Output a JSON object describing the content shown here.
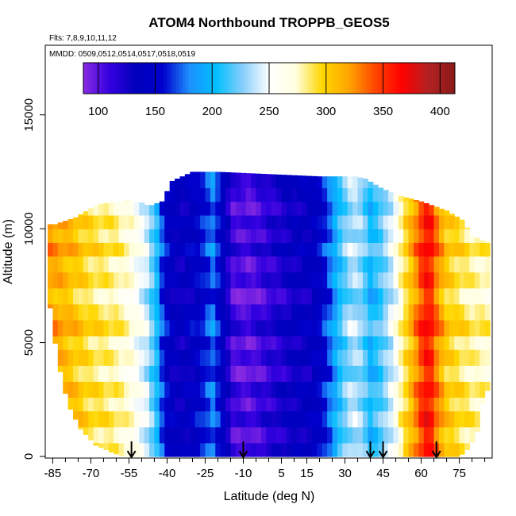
{
  "chart_data": {
    "type": "heatmap",
    "title": "ATOM4 Northbound TROPPB_GEOS5",
    "flights_note": "Flts: 7,8,9,10,11,12",
    "dates_note": "MMDD: 0509,0512,0514,0517,0518,0519",
    "xlabel": "Latitude (deg N)",
    "ylabel": "Altitude (m)",
    "xlim": [
      -87,
      87
    ],
    "ylim": [
      0,
      17500
    ],
    "x_ticks": [
      -85,
      -70,
      -55,
      -40,
      -25,
      -10,
      5,
      15,
      30,
      45,
      60,
      75
    ],
    "x_minor_ticks": [
      -80,
      -75,
      -65,
      -60,
      -50,
      -45,
      -35,
      -30,
      -20,
      -15,
      -5,
      0,
      10,
      20,
      25,
      35,
      40,
      50,
      55,
      65,
      70,
      80,
      85
    ],
    "y_ticks": [
      0,
      5000,
      10000,
      15000
    ],
    "colorbar": {
      "label_ticks": [
        100,
        150,
        200,
        250,
        300,
        350,
        400
      ],
      "range": [
        87,
        413
      ],
      "colors": [
        "#8a2be2",
        "#3300e0",
        "#0000bb",
        "#0000cd",
        "#1e90ff",
        "#00bfff",
        "#87cefa",
        "#ffffff",
        "#ffffe0",
        "#ffd700",
        "#ffa500",
        "#ff4500",
        "#ff0000",
        "#b22222",
        "#8b1a1a"
      ]
    },
    "arrow_latitudes": [
      -54,
      -10,
      40,
      45,
      66
    ],
    "lat_profile": [
      [
        -87,
        320
      ],
      [
        -80,
        310
      ],
      [
        -70,
        290
      ],
      [
        -60,
        280
      ],
      [
        -54,
        265
      ],
      [
        -48,
        240
      ],
      [
        -44,
        200
      ],
      [
        -41,
        150
      ],
      [
        -35,
        130
      ],
      [
        -27,
        150
      ],
      [
        -22,
        175
      ],
      [
        -18,
        140
      ],
      [
        -14,
        105
      ],
      [
        -8,
        100
      ],
      [
        -2,
        110
      ],
      [
        4,
        120
      ],
      [
        10,
        130
      ],
      [
        16,
        135
      ],
      [
        21,
        150
      ],
      [
        25,
        180
      ],
      [
        29,
        215
      ],
      [
        33,
        235
      ],
      [
        37,
        225
      ],
      [
        40,
        200
      ],
      [
        44,
        215
      ],
      [
        49,
        245
      ],
      [
        53,
        285
      ],
      [
        57,
        315
      ],
      [
        60,
        345
      ],
      [
        63,
        365
      ],
      [
        66,
        330
      ],
      [
        70,
        300
      ],
      [
        75,
        290
      ],
      [
        80,
        280
      ],
      [
        87,
        275
      ]
    ],
    "coverage_top": [
      [
        -84,
        10200
      ],
      [
        -76,
        10500
      ],
      [
        -70,
        10900
      ],
      [
        -66,
        11100
      ],
      [
        -58,
        11200
      ],
      [
        -52,
        11250
      ],
      [
        -47,
        11000
      ],
      [
        -42,
        11200
      ],
      [
        -38,
        12100
      ],
      [
        -30,
        12500
      ],
      [
        -20,
        12500
      ],
      [
        0,
        12400
      ],
      [
        20,
        12300
      ],
      [
        34,
        12300
      ],
      [
        38,
        12200
      ],
      [
        44,
        11800
      ],
      [
        50,
        11500
      ],
      [
        60,
        11200
      ],
      [
        70,
        10800
      ],
      [
        76,
        10400
      ],
      [
        80,
        9700
      ],
      [
        84,
        9500
      ]
    ],
    "coverage_bottom": [
      [
        -87,
        7300
      ],
      [
        -83,
        4200
      ],
      [
        -79,
        2300
      ],
      [
        -74,
        1200
      ],
      [
        -68,
        500
      ],
      [
        -62,
        200
      ],
      [
        -57,
        0
      ],
      [
        75,
        0
      ],
      [
        79,
        400
      ],
      [
        82,
        1100
      ],
      [
        84,
        2300
      ],
      [
        87,
        3200
      ]
    ],
    "bands": [
      {
        "y0": 0,
        "y1": 600,
        "shift": 8
      },
      {
        "y0": 600,
        "y1": 1300,
        "shift": -6
      },
      {
        "y0": 1300,
        "y1": 2000,
        "shift": 12
      },
      {
        "y0": 2000,
        "y1": 2600,
        "shift": -4
      },
      {
        "y0": 2600,
        "y1": 3300,
        "shift": 10
      },
      {
        "y0": 3300,
        "y1": 4000,
        "shift": -10
      },
      {
        "y0": 4000,
        "y1": 4700,
        "shift": 5
      },
      {
        "y0": 4700,
        "y1": 5300,
        "shift": -8
      },
      {
        "y0": 5300,
        "y1": 6000,
        "shift": 14
      },
      {
        "y0": 6000,
        "y1": 6700,
        "shift": 2
      },
      {
        "y0": 6700,
        "y1": 7400,
        "shift": -12
      },
      {
        "y0": 7400,
        "y1": 8100,
        "shift": 6
      },
      {
        "y0": 8100,
        "y1": 8800,
        "shift": -5
      },
      {
        "y0": 8800,
        "y1": 9400,
        "shift": 15
      },
      {
        "y0": 9400,
        "y1": 10000,
        "shift": -3
      },
      {
        "y0": 10000,
        "y1": 10600,
        "shift": 9
      },
      {
        "y0": 10600,
        "y1": 11200,
        "shift": -7
      },
      {
        "y0": 11200,
        "y1": 11800,
        "shift": 4
      },
      {
        "y0": 11800,
        "y1": 12500,
        "shift": 11
      }
    ]
  }
}
